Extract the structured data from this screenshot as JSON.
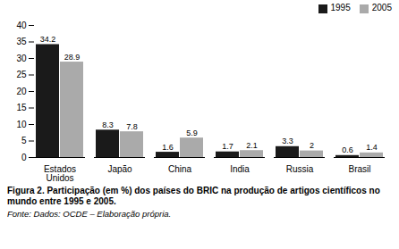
{
  "chart_data": {
    "type": "bar",
    "caption": "Figura 2. Participação (em %) dos países do BRIC na produção de artigos científicos no mundo entre 1995 e 2005.",
    "source": "Fonte: Dados: OCDE – Elaboração própria.",
    "categories": [
      "Estados\nUnidos",
      "Japão",
      "China",
      "India",
      "Russia",
      "Brasil"
    ],
    "series": [
      {
        "name": "1995",
        "color": "#1a1a1a",
        "values": [
          34.2,
          8.3,
          1.6,
          1.7,
          3.3,
          0.6
        ]
      },
      {
        "name": "2005",
        "color": "#aaaaaa",
        "values": [
          28.9,
          7.8,
          5.9,
          2.1,
          2.0,
          1.4
        ]
      }
    ],
    "ylim": [
      0,
      40
    ],
    "yticks": [
      0,
      5,
      10,
      15,
      20,
      25,
      30,
      35,
      40
    ],
    "grid": false,
    "legend": "upper right",
    "data_labels": true
  }
}
